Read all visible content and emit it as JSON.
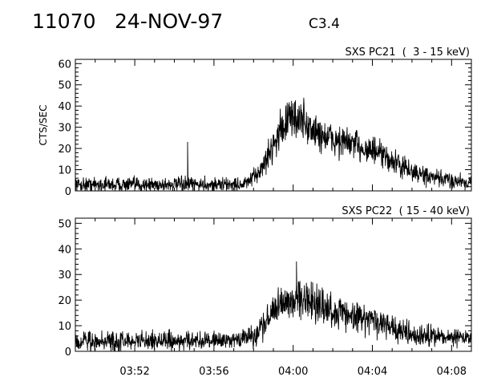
{
  "header": {
    "event_id": "11070",
    "date": "24-NOV-97",
    "flare_class": "C3.4"
  },
  "chart_data": [
    {
      "type": "line",
      "title": "SXS PC21  (  3 - 15 keV)",
      "ylabel": "CTS/SEC",
      "xlabel": "",
      "xlim": [
        "03:49",
        "04:09"
      ],
      "ylim": [
        0,
        62
      ],
      "yticks": [
        0,
        10,
        20,
        30,
        40,
        50,
        60
      ],
      "xticks": [
        "03:52",
        "03:56",
        "04:00",
        "04:04",
        "04:08"
      ],
      "grid": false,
      "series": [
        {
          "color": "#000000",
          "x": [
            "03:49",
            "03:50",
            "03:51",
            "03:52",
            "03:53",
            "03:54",
            "03:54:30",
            "03:55",
            "03:56",
            "03:57",
            "03:57:30",
            "03:58",
            "03:58:30",
            "03:59",
            "03:59:30",
            "04:00",
            "04:00:30",
            "04:01",
            "04:02",
            "04:03",
            "04:04",
            "04:05",
            "04:06",
            "04:07",
            "04:08",
            "04:09"
          ],
          "values": [
            3,
            3,
            3,
            3,
            3,
            3,
            3,
            3,
            3,
            3,
            3,
            6,
            12,
            22,
            31,
            35,
            33,
            28,
            24,
            22,
            19,
            14,
            9,
            6,
            5,
            4
          ],
          "spikes": [
            {
              "x": "03:54:40",
              "y": 23
            }
          ]
        }
      ]
    },
    {
      "type": "line",
      "title": "SXS PC22  ( 15 - 40 keV)",
      "ylabel": "",
      "xlabel": "",
      "xlim": [
        "03:49",
        "04:09"
      ],
      "ylim": [
        0,
        52
      ],
      "yticks": [
        0,
        10,
        20,
        30,
        40,
        50
      ],
      "xticks": [
        "03:52",
        "03:56",
        "04:00",
        "04:04",
        "04:08"
      ],
      "grid": false,
      "series": [
        {
          "color": "#000000",
          "x": [
            "03:49",
            "03:50",
            "03:51",
            "03:52",
            "03:53",
            "03:54",
            "03:55",
            "03:56",
            "03:57",
            "03:57:30",
            "03:58",
            "03:58:30",
            "03:59",
            "03:59:30",
            "04:00",
            "04:00:30",
            "04:01",
            "04:02",
            "04:03",
            "04:04",
            "04:05",
            "04:06",
            "04:07",
            "04:08",
            "04:09"
          ],
          "values": [
            4,
            4,
            4,
            4,
            4,
            4,
            4,
            4,
            4,
            5,
            6,
            10,
            16,
            20,
            21,
            20,
            19,
            16,
            14,
            12,
            9,
            7,
            6,
            5,
            5
          ],
          "spikes": [
            {
              "x": "04:00:10",
              "y": 35
            }
          ]
        }
      ]
    }
  ]
}
